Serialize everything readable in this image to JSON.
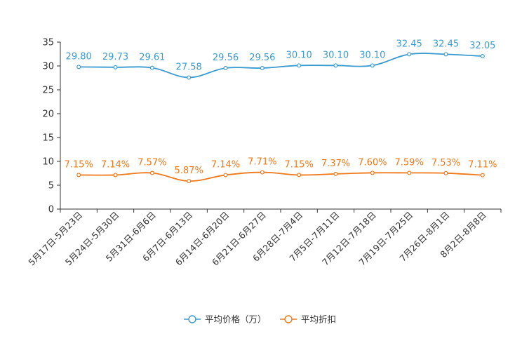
{
  "chart_data": {
    "type": "line",
    "categories": [
      "5月17日-5月23日",
      "5月24日-5月30日",
      "5月31日-6月6日",
      "6月7日-6月13日",
      "6月14日-6月20日",
      "6月21日-6月27日",
      "6月28日-7月4日",
      "7月5日-7月11日",
      "7月12日-7月18日",
      "7月19日-7月25日",
      "7月26日-8月1日",
      "8月2日-8月8日"
    ],
    "ylim": [
      0,
      35
    ],
    "yticks": [
      0,
      5,
      10,
      15,
      20,
      25,
      30,
      35
    ],
    "grid": false,
    "legend_position": "bottom-center",
    "series": [
      {
        "name": "平均价格（万）",
        "color": "#3a9bd0",
        "values": [
          29.8,
          29.73,
          29.61,
          27.58,
          29.56,
          29.56,
          30.1,
          30.1,
          30.1,
          32.45,
          32.45,
          32.05
        ],
        "labels": [
          "29.80",
          "29.73",
          "29.61",
          "27.58",
          "29.56",
          "29.56",
          "30.10",
          "30.10",
          "30.10",
          "32.45",
          "32.45",
          "32.05"
        ]
      },
      {
        "name": "平均折扣",
        "color": "#f07818",
        "values": [
          7.15,
          7.14,
          7.57,
          5.87,
          7.14,
          7.71,
          7.15,
          7.37,
          7.6,
          7.59,
          7.53,
          7.11
        ],
        "labels": [
          "7.15%",
          "7.14%",
          "7.57%",
          "5.87%",
          "7.14%",
          "7.71%",
          "7.15%",
          "7.37%",
          "7.60%",
          "7.59%",
          "7.53%",
          "7.11%"
        ]
      }
    ]
  }
}
